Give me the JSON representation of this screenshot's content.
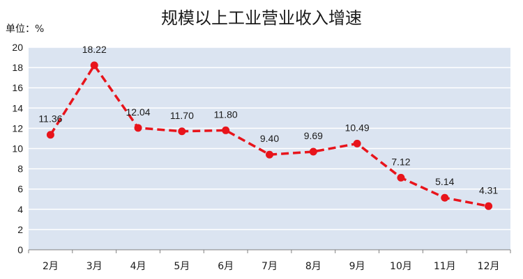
{
  "chart_data": {
    "type": "line",
    "title": "规模以上工业营业收入增速",
    "unit_label": "单位：%",
    "xlabel": "",
    "ylabel": "",
    "categories": [
      "2月",
      "3月",
      "4月",
      "5月",
      "6月",
      "7月",
      "8月",
      "9月",
      "10月",
      "11月",
      "12月"
    ],
    "series": [
      {
        "values": [
          11.36,
          18.22,
          12.04,
          11.7,
          11.8,
          9.4,
          9.69,
          10.49,
          7.12,
          5.14,
          4.31
        ],
        "value_labels": [
          "11.36",
          "18.22",
          "12.04",
          "11.70",
          "11.80",
          "9.40",
          "9.69",
          "10.49",
          "7.12",
          "5.14",
          "4.31"
        ],
        "color": "#e8141b",
        "line_style": "dashed",
        "marker": "circle"
      }
    ],
    "ylim": [
      0,
      20
    ],
    "yticks": [
      0,
      2,
      4,
      6,
      8,
      10,
      12,
      14,
      16,
      18,
      20
    ],
    "grid": true,
    "legend": "none",
    "plot_background": "#dbe4f1",
    "grid_color": "#ffffff"
  }
}
